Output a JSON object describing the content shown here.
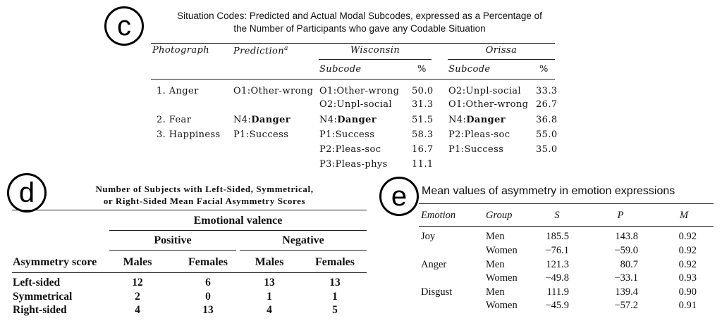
{
  "panel_c": {
    "label": "c",
    "title_line1": "Situation Codes: Predicted and Actual Modal Subcodes, expressed as a Percentage of",
    "title_line2": "the Number of Participants who gave any Codable Situation",
    "col_photograph": "Photograph",
    "col_prediction": "Prediction",
    "col_prediction_sup": "a",
    "group_wisconsin": "Wisconsin",
    "group_orissa": "Orissa",
    "sub_subcode": "Subcode",
    "sub_pct": "%",
    "rows": [
      {
        "photo": "1.  Anger",
        "pred": "O1:Other-wrong",
        "w_code": "O1:Other-wrong",
        "w_pct": "50.0",
        "o_code": "O2:Unpl-social",
        "o_pct": "33.3"
      },
      {
        "photo": "",
        "pred": "",
        "w_code": "O2:Unpl-social",
        "w_pct": "31.3",
        "o_code": "O1:Other-wrong",
        "o_pct": "26.7"
      },
      {
        "photo": "2.  Fear",
        "pred": "N4:Danger",
        "w_code": "N4:Danger",
        "w_pct": "51.5",
        "o_code": "N4:Danger",
        "o_pct": "36.8"
      },
      {
        "photo": "3.  Happiness",
        "pred": "P1:Success",
        "w_code": "P1:Success",
        "w_pct": "58.3",
        "o_code": "P2:Pleas-soc",
        "o_pct": "55.0"
      },
      {
        "photo": "",
        "pred": "",
        "w_code": "P2:Pleas-soc",
        "w_pct": "16.7",
        "o_code": "P1:Success",
        "o_pct": "35.0"
      },
      {
        "photo": "",
        "pred": "",
        "w_code": "P3:Pleas-phys",
        "w_pct": "11.1",
        "o_code": "",
        "o_pct": ""
      }
    ]
  },
  "panel_d": {
    "label": "d",
    "title_line1": "Number of Subjects with Left-Sided, Symmetrical,",
    "title_line2": "or Right-Sided Mean Facial Asymmetry Scores",
    "group_header": "Emotional valence",
    "positive": "Positive",
    "negative": "Negative",
    "col_score": "Asymmetry score",
    "col_males": "Males",
    "col_females": "Females",
    "rows": [
      {
        "label": "Left-sided",
        "pm": "12",
        "pf": "6",
        "nm": "13",
        "nf": "13"
      },
      {
        "label": "Symmetrical",
        "pm": "2",
        "pf": "0",
        "nm": "1",
        "nf": "1"
      },
      {
        "label": "Right-sided",
        "pm": "4",
        "pf": "13",
        "nm": "4",
        "nf": "5"
      }
    ]
  },
  "panel_e": {
    "label": "e",
    "title": "Mean values of asymmetry in emotion expressions",
    "col_emotion": "Emotion",
    "col_group": "Group",
    "col_s": "S",
    "col_p": "P",
    "col_m": "M",
    "rows": [
      {
        "emotion": "Joy",
        "group": "Men",
        "s": "185.5",
        "p": "143.8",
        "m": "0.92"
      },
      {
        "emotion": "",
        "group": "Women",
        "s": "−76.1",
        "p": "−59.0",
        "m": "0.92"
      },
      {
        "emotion": "Anger",
        "group": "Men",
        "s": "121.3",
        "p": "80.7",
        "m": "0.92"
      },
      {
        "emotion": "",
        "group": "Women",
        "s": "−49.8",
        "p": "−33.1",
        "m": "0.93"
      },
      {
        "emotion": "Disgust",
        "group": "Men",
        "s": "111.9",
        "p": "139.4",
        "m": "0.90"
      },
      {
        "emotion": "",
        "group": "Women",
        "s": "−45.9",
        "p": "−57.2",
        "m": "0.91"
      }
    ]
  }
}
